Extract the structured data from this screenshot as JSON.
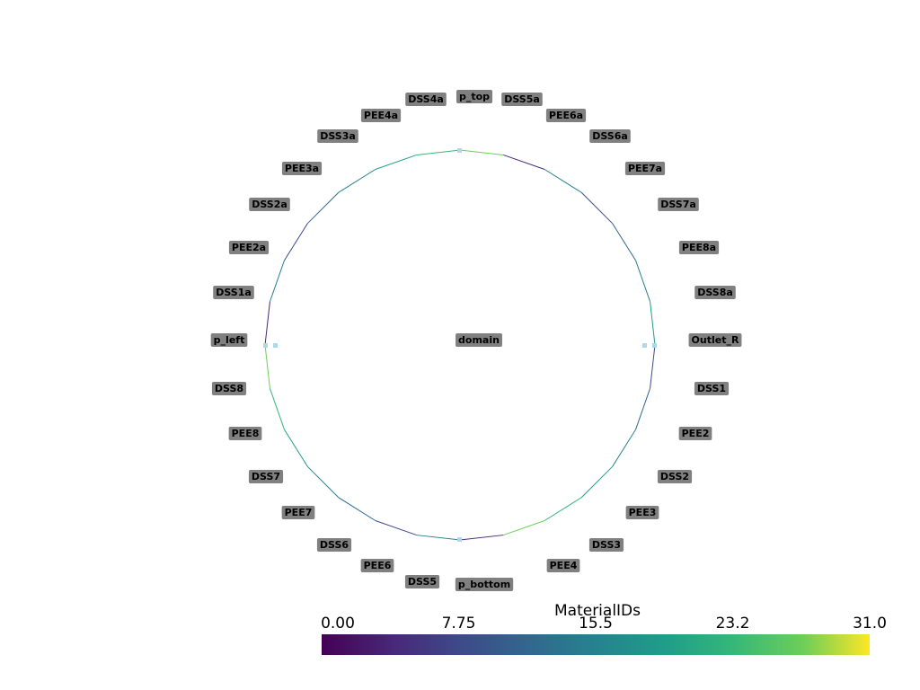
{
  "labels": [
    "p_top",
    "DSS5a",
    "PEE6a",
    "DSS6a",
    "PEE7a",
    "DSS7a",
    "PEE8a",
    "DSS8a",
    "Outlet_R",
    "DSS1",
    "PEE2",
    "DSS2",
    "PEE3",
    "DSS3",
    "PEE4",
    "p_bottom",
    "DSS5",
    "PEE6",
    "DSS6",
    "PEE7",
    "DSS7",
    "PEE8",
    "DSS8",
    "p_left",
    "DSS1a",
    "PEE2a",
    "DSS2a",
    "PEE3a",
    "DSS3a",
    "PEE4a",
    "DSS4a",
    "domain"
  ],
  "colorbar": {
    "title": "MaterialIDs",
    "range": [
      0,
      31
    ],
    "ticks": [
      {
        "value": 0,
        "label": "0.00"
      },
      7.75,
      15.5,
      {
        "value": 23.25,
        "label": "23.2"
      },
      {
        "value": 31,
        "label": "31.0"
      }
    ]
  }
}
